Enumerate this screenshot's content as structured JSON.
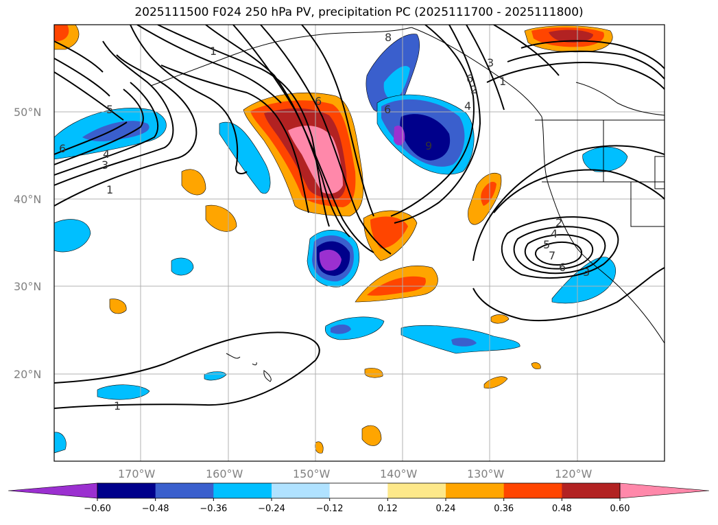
{
  "title": "2025111500 F024 250 hPa PV, precipitation PC (2025111700 - 2025111800)",
  "lat_labels": [
    "50°N",
    "40°N",
    "30°N",
    "20°N"
  ],
  "lon_labels": [
    "170°W",
    "160°W",
    "150°W",
    "140°W",
    "130°W",
    "120°W"
  ],
  "colorbar": {
    "ticks": [
      "−0.60",
      "−0.48",
      "−0.36",
      "−0.24",
      "−0.12",
      "0.12",
      "0.24",
      "0.36",
      "0.48",
      "0.60"
    ],
    "colors": [
      "#9b30d0",
      "#00008b",
      "#3a5fcd",
      "#00bfff",
      "#b0e2ff",
      "#ffffff",
      "#fde88a",
      "#ffa500",
      "#ff4500",
      "#b22222",
      "#ff88aa",
      "#ff88aa"
    ]
  },
  "contour_labels": [
    "1",
    "3",
    "4",
    "6",
    "1",
    "5",
    "6",
    "6",
    "8",
    "9",
    "1",
    "4",
    "2",
    "4",
    "5",
    "6",
    "3",
    "6",
    "3",
    "2",
    "1",
    "7"
  ],
  "colors": {
    "pv_contour": "#000000",
    "coast": "#000000",
    "grid": "#b0b0b0"
  }
}
